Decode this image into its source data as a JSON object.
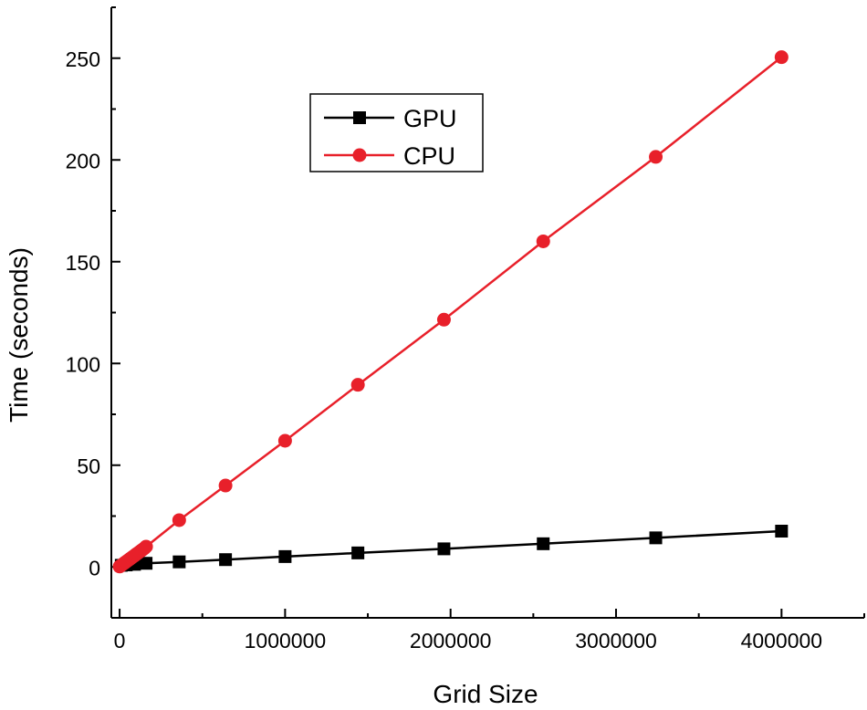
{
  "chart_data": {
    "type": "line",
    "title": "",
    "xlabel": "Grid Size",
    "ylabel": "Time (seconds)",
    "xlim": [
      -50000,
      4500000
    ],
    "ylim": [
      -25,
      275
    ],
    "x_ticks": [
      0,
      1000000,
      2000000,
      3000000,
      4000000
    ],
    "x_tick_labels": [
      "0",
      "1000000",
      "2000000",
      "3000000",
      "4000000"
    ],
    "y_ticks": [
      0,
      50,
      100,
      150,
      200,
      250
    ],
    "y_tick_labels": [
      "0",
      "50",
      "100",
      "150",
      "200",
      "250"
    ],
    "legend_position": "top-center",
    "grid": false,
    "series": [
      {
        "name": "GPU",
        "color": "#000000",
        "marker": "square",
        "x": [
          10000,
          40000,
          90000,
          160000,
          360000,
          640000,
          1000000,
          1440000,
          1960000,
          2560000,
          3240000,
          4000000
        ],
        "y": [
          0.8,
          1.0,
          1.3,
          1.8,
          2.5,
          3.6,
          5.1,
          6.9,
          8.9,
          11.4,
          14.3,
          17.6
        ]
      },
      {
        "name": "CPU",
        "color": "#e8202a",
        "marker": "circle",
        "x": [
          0,
          10000,
          20000,
          30000,
          40000,
          50000,
          60000,
          70000,
          80000,
          90000,
          100000,
          110000,
          120000,
          130000,
          140000,
          150000,
          160000,
          360000,
          640000,
          1000000,
          1440000,
          1960000,
          2560000,
          3240000,
          4000000
        ],
        "y": [
          0.2,
          0.8,
          1.4,
          2.0,
          2.6,
          3.2,
          3.8,
          4.4,
          5.0,
          5.6,
          6.2,
          6.8,
          7.4,
          8.0,
          8.6,
          9.2,
          10.0,
          23.0,
          40.0,
          62.0,
          89.5,
          121.5,
          160.0,
          201.5,
          250.5
        ]
      }
    ]
  }
}
